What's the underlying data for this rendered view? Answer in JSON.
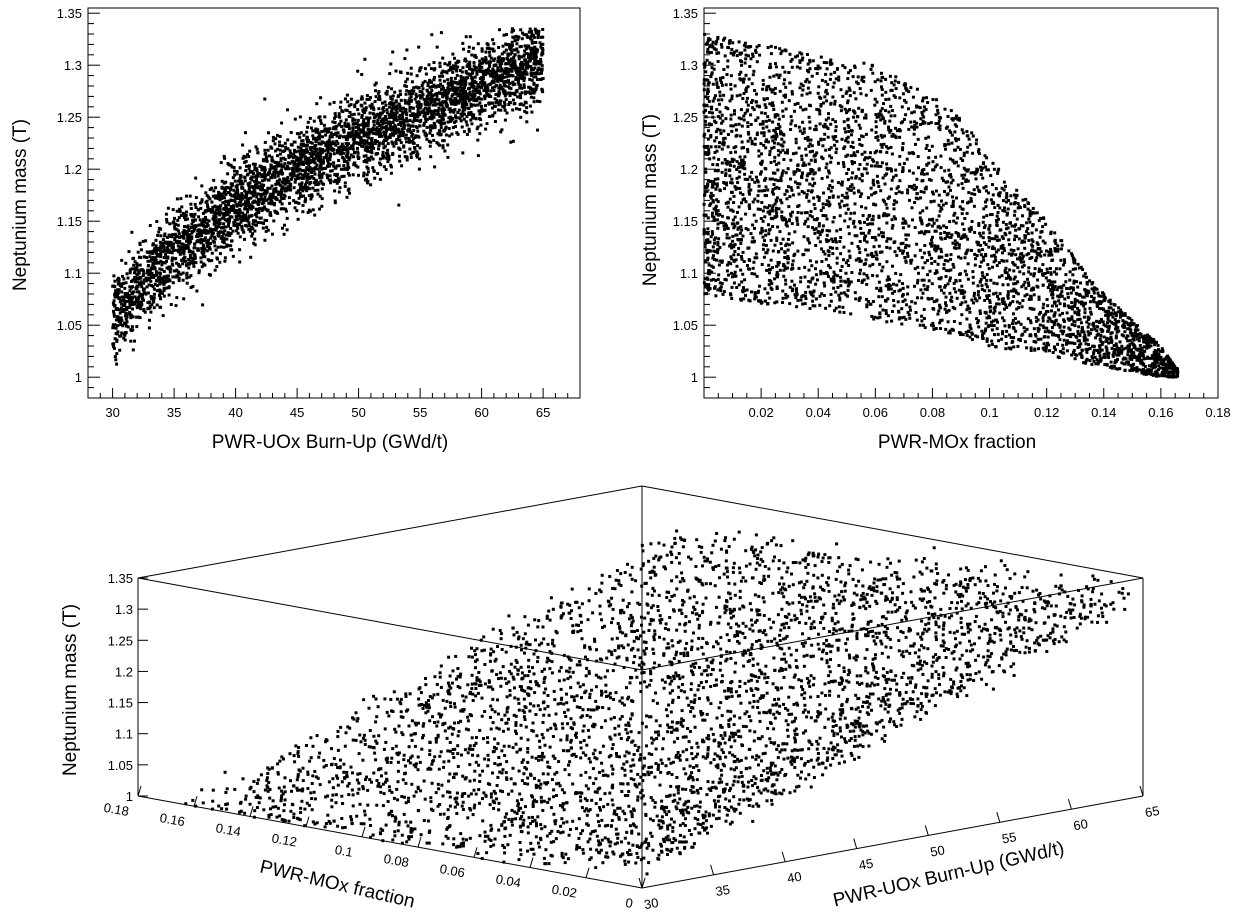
{
  "chart_data": [
    {
      "type": "scatter",
      "panel": "top-left",
      "title": "",
      "xlabel": "PWR-UOx Burn-Up (GWd/t)",
      "ylabel": "Neptunium mass (T)",
      "xlim": [
        28,
        68
      ],
      "ylim": [
        0.98,
        1.355
      ],
      "xticks": [
        "30",
        "35",
        "40",
        "45",
        "50",
        "55",
        "60",
        "65"
      ],
      "yticks": [
        "1",
        "1.05",
        "1.1",
        "1.15",
        "1.2",
        "1.25",
        "1.3",
        "1.35"
      ],
      "trend": {
        "x": [
          30,
          35,
          40,
          45,
          50,
          55,
          60,
          65
        ],
        "y_center": [
          1.055,
          1.12,
          1.165,
          1.2,
          1.23,
          1.255,
          1.28,
          1.305
        ],
        "spread": 0.028
      },
      "n_points": 4000,
      "marker_color": "#000000"
    },
    {
      "type": "scatter",
      "panel": "top-right",
      "title": "",
      "xlabel": "PWR-MOx fraction",
      "ylabel": "Neptunium mass (T)",
      "xlim": [
        0,
        0.18
      ],
      "ylim": [
        0.98,
        1.355
      ],
      "xticks": [
        "0.02",
        "0.04",
        "0.06",
        "0.08",
        "0.1",
        "0.12",
        "0.14",
        "0.16",
        "0.18"
      ],
      "yticks": [
        "1",
        "1.05",
        "1.1",
        "1.15",
        "1.2",
        "1.25",
        "1.3",
        "1.35"
      ],
      "envelope": {
        "x": [
          0,
          0.02,
          0.04,
          0.06,
          0.08,
          0.09,
          0.1,
          0.12,
          0.14,
          0.16,
          0.165
        ],
        "y_max": [
          1.33,
          1.32,
          1.31,
          1.3,
          1.27,
          1.25,
          1.21,
          1.15,
          1.08,
          1.03,
          1.01
        ],
        "y_min": [
          1.08,
          1.07,
          1.065,
          1.055,
          1.045,
          1.04,
          1.03,
          1.02,
          1.01,
          1.0,
          1.0
        ]
      },
      "n_points": 4000,
      "marker_color": "#000000"
    },
    {
      "type": "scatter3d",
      "panel": "bottom",
      "title": "",
      "xlabel": "PWR-MOx fraction",
      "ylabel": "PWR-UOx Burn-Up (GWd/t)",
      "zlabel": "Neptunium mass (T)",
      "xlim": [
        0,
        0.18
      ],
      "ylim": [
        30,
        65
      ],
      "zlim": [
        1,
        1.35
      ],
      "xticks": [
        "0.18",
        "0.16",
        "0.14",
        "0.12",
        "0.1",
        "0.08",
        "0.06",
        "0.04",
        "0.02",
        "0"
      ],
      "yticks": [
        "30",
        "35",
        "40",
        "45",
        "50",
        "55",
        "60",
        "65"
      ],
      "zticks": [
        "1",
        "1.05",
        "1.1",
        "1.15",
        "1.2",
        "1.25",
        "1.3",
        "1.35"
      ],
      "n_points": 4000,
      "marker_color": "#000000"
    }
  ]
}
